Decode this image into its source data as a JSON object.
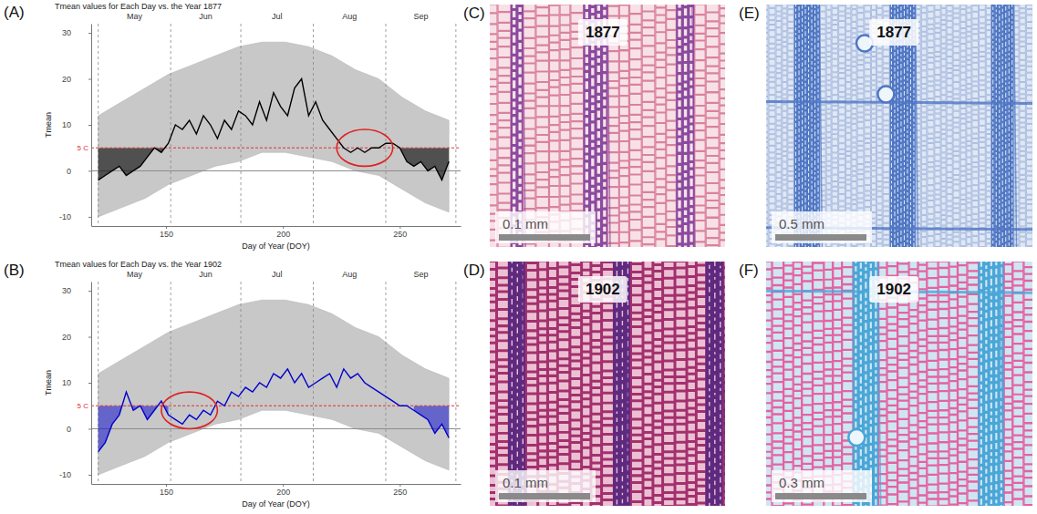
{
  "chart_data": [
    {
      "type": "line",
      "panel": "(A)",
      "title": "Tmean values for Each Day vs. the Year 1877",
      "x_label": "Day of Year (DOY)",
      "y_label": "Tmean",
      "xlim": [
        118,
        276
      ],
      "ylim": [
        -12,
        32
      ],
      "xticks": [
        150,
        200,
        250
      ],
      "yticks": [
        -10,
        0,
        10,
        20,
        30
      ],
      "months": [
        "May",
        "Jun",
        "Jul",
        "Aug",
        "Sep"
      ],
      "month_starts": [
        121,
        152,
        182,
        213,
        244,
        274
      ],
      "baseline": 0,
      "threshold": 5,
      "threshold_label": "5 C",
      "background": {
        "x": [
          121,
          131,
          141,
          151,
          161,
          171,
          181,
          191,
          201,
          211,
          221,
          231,
          241,
          251,
          261,
          271
        ],
        "lower": [
          -10,
          -8,
          -6,
          -3,
          -1,
          1,
          2,
          4,
          4,
          3,
          2,
          0,
          -1,
          -4,
          -7,
          -9
        ],
        "upper": [
          12,
          15,
          18,
          21,
          23,
          25,
          27,
          28,
          28,
          27,
          25,
          22,
          20,
          16,
          13,
          11
        ],
        "color": "#c8c8c8"
      },
      "x": [
        121,
        124,
        127,
        130,
        133,
        136,
        139,
        142,
        145,
        148,
        151,
        154,
        157,
        160,
        163,
        166,
        169,
        172,
        175,
        178,
        181,
        184,
        187,
        190,
        193,
        196,
        199,
        202,
        205,
        208,
        211,
        214,
        217,
        220,
        223,
        226,
        229,
        232,
        235,
        238,
        241,
        244,
        247,
        250,
        253,
        256,
        259,
        262,
        265,
        268,
        271
      ],
      "series": [
        {
          "color": "#000000",
          "values": [
            -2,
            -1,
            0,
            1,
            -1,
            0,
            1,
            3,
            5,
            4,
            6,
            10,
            9,
            11,
            8,
            12,
            10,
            7,
            11,
            9,
            13,
            12,
            10,
            15,
            11,
            17,
            14,
            12,
            18,
            20,
            12,
            15,
            11,
            9,
            7,
            5,
            4,
            5,
            4,
            5,
            5,
            6,
            6,
            5,
            2,
            1,
            2,
            0,
            1,
            -2,
            2
          ]
        }
      ],
      "shaded_x": [
        [
          121,
          151
        ],
        [
          250,
          271
        ]
      ],
      "circle": {
        "x": [
          223,
          247
        ],
        "y": [
          1,
          9
        ]
      }
    },
    {
      "type": "line",
      "panel": "(B)",
      "title": "Tmean values for Each Day vs. the Year 1902",
      "x_label": "Day of Year (DOY)",
      "y_label": "Tmean",
      "xlim": [
        118,
        276
      ],
      "ylim": [
        -12,
        32
      ],
      "xticks": [
        150,
        200,
        250
      ],
      "yticks": [
        -10,
        0,
        10,
        20,
        30
      ],
      "months": [
        "May",
        "Jun",
        "Jul",
        "Aug",
        "Sep"
      ],
      "month_starts": [
        121,
        152,
        182,
        213,
        244,
        274
      ],
      "baseline": 0,
      "threshold": 5,
      "threshold_label": "5 C",
      "background": {
        "x": [
          121,
          131,
          141,
          151,
          161,
          171,
          181,
          191,
          201,
          211,
          221,
          231,
          241,
          251,
          261,
          271
        ],
        "lower": [
          -10,
          -8,
          -6,
          -3,
          -1,
          1,
          2,
          4,
          4,
          3,
          2,
          0,
          -1,
          -4,
          -7,
          -9
        ],
        "upper": [
          12,
          15,
          18,
          21,
          23,
          25,
          27,
          28,
          28,
          27,
          25,
          22,
          20,
          16,
          13,
          11
        ],
        "color": "#c8c8c8"
      },
      "x": [
        121,
        124,
        127,
        130,
        133,
        136,
        139,
        142,
        145,
        148,
        151,
        154,
        157,
        160,
        163,
        166,
        169,
        172,
        175,
        178,
        181,
        184,
        187,
        190,
        193,
        196,
        199,
        202,
        205,
        208,
        211,
        214,
        217,
        220,
        223,
        226,
        229,
        232,
        235,
        238,
        241,
        244,
        247,
        250,
        253,
        256,
        259,
        262,
        265,
        268,
        271
      ],
      "series": [
        {
          "color": "#0000cc",
          "values": [
            -5,
            -3,
            1,
            3,
            8,
            4,
            5,
            2,
            4,
            6,
            3,
            2,
            1,
            3,
            2,
            4,
            3,
            6,
            5,
            8,
            7,
            9,
            8,
            10,
            9,
            12,
            11,
            13,
            10,
            12,
            9,
            10,
            11,
            12,
            9,
            13,
            11,
            12,
            10,
            9,
            8,
            7,
            6,
            5,
            5,
            4,
            3,
            2,
            -1,
            1,
            -2
          ]
        }
      ],
      "shaded_x": [
        [
          121,
          151
        ],
        [
          256,
          271
        ]
      ],
      "circle": {
        "x": [
          148,
          172
        ],
        "y": [
          0,
          8
        ]
      }
    }
  ],
  "images": [
    {
      "panel": "(C)",
      "year": "1877",
      "scale_bar": "0.1 mm"
    },
    {
      "panel": "(D)",
      "year": "1902",
      "scale_bar": "0.1 mm"
    },
    {
      "panel": "(E)",
      "year": "1877",
      "scale_bar": "0.5 mm"
    },
    {
      "panel": "(F)",
      "year": "1902",
      "scale_bar": "0.3 mm"
    }
  ]
}
